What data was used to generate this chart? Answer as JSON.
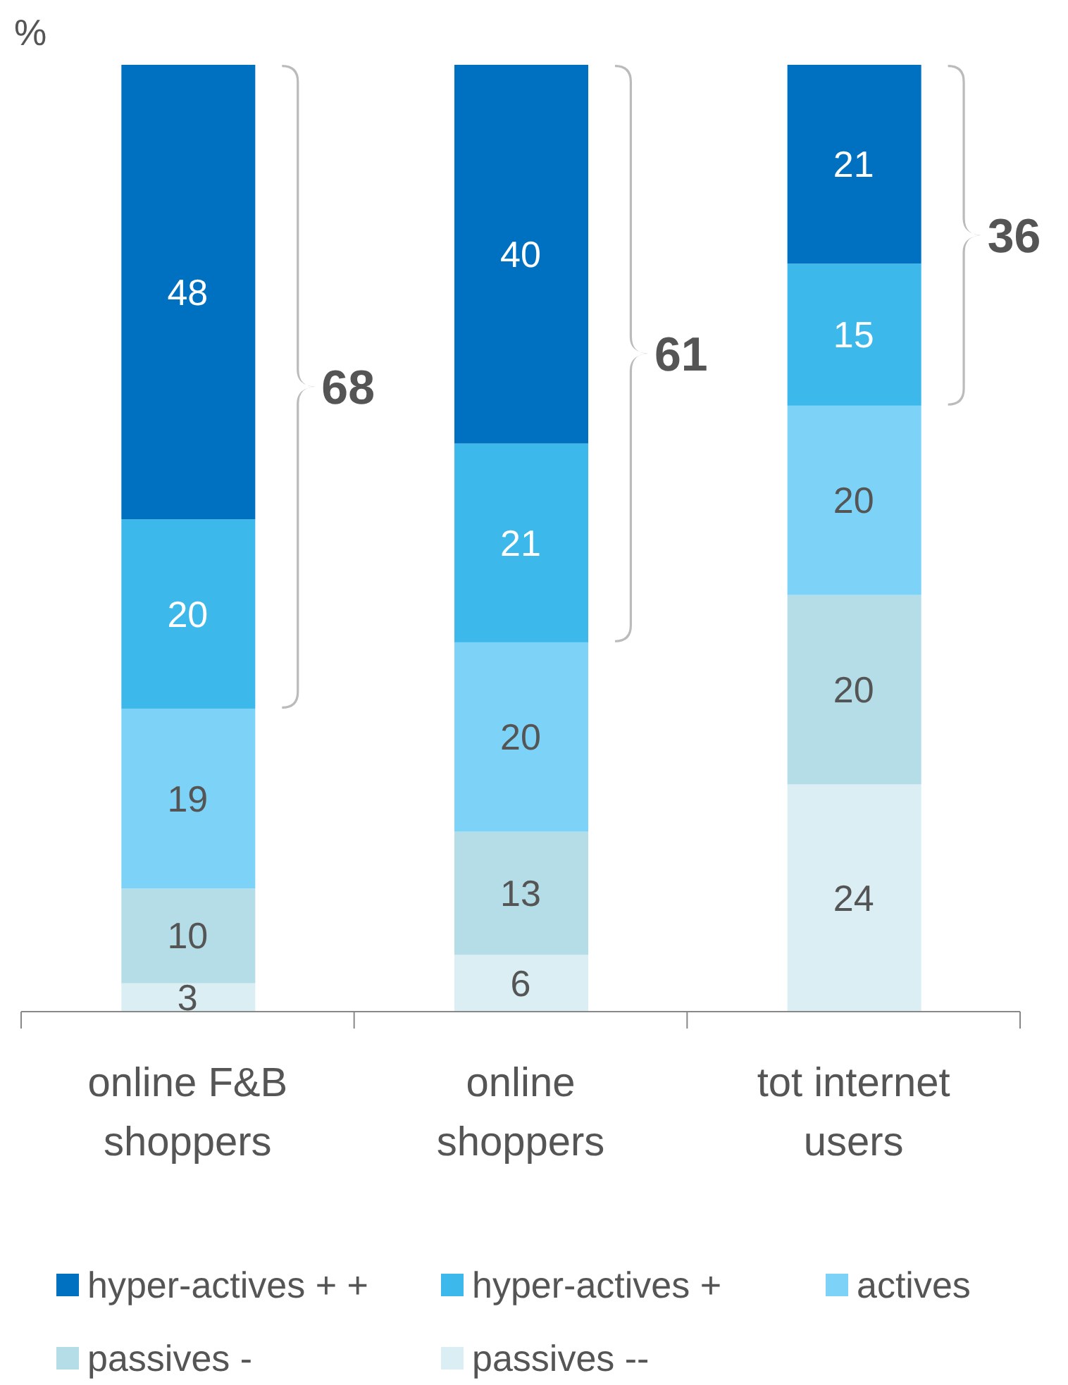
{
  "chart_data": {
    "type": "bar",
    "stacked": true,
    "ylabel": "%",
    "data_labels": true,
    "legend": "bottom",
    "categories": [
      "online F&B shoppers",
      "online shoppers",
      "tot internet users"
    ],
    "series": [
      {
        "name": "passives --",
        "color": "#daeef4",
        "values": [
          3,
          6,
          24
        ]
      },
      {
        "name": "passives -",
        "color": "#b5dde7",
        "values": [
          10,
          13,
          20
        ]
      },
      {
        "name": "actives",
        "color": "#7dd3f7",
        "values": [
          19,
          20,
          20
        ]
      },
      {
        "name": "hyper-actives +",
        "color": "#3cb8ea",
        "values": [
          20,
          21,
          15
        ]
      },
      {
        "name": "hyper-actives + +",
        "color": "#0070c0",
        "values": [
          48,
          40,
          21
        ]
      }
    ],
    "annotations": [
      "68",
      "61",
      "36"
    ]
  }
}
